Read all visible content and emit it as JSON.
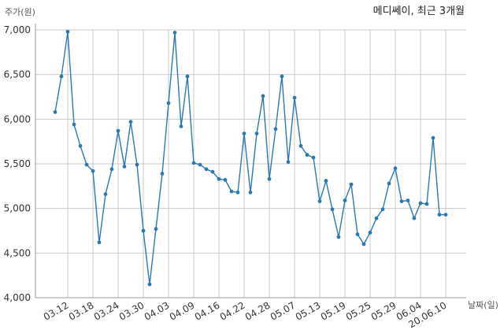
{
  "chart_data": {
    "type": "line",
    "title": "메디쎄이, 최근 3개월",
    "ylabel": "주가(원)",
    "xlabel": "날짜(일)",
    "ylim": [
      4000,
      7000
    ],
    "yticks": [
      4000,
      4500,
      5000,
      5500,
      6000,
      6500,
      7000
    ],
    "ytick_labels": [
      "4,000",
      "4,500",
      "5,000",
      "5,500",
      "6,000",
      "6,500",
      "7,000"
    ],
    "xtick_labels": [
      "03.12",
      "03.18",
      "03.24",
      "03.30",
      "04.03",
      "04.09",
      "04.16",
      "04.22",
      "04.28",
      "05.07",
      "05.13",
      "05.19",
      "05.25",
      "05.29",
      "06.04",
      "20.06.10"
    ],
    "xtick_indices": [
      2,
      6,
      10,
      14,
      18,
      22,
      26,
      30,
      34,
      38,
      42,
      46,
      50,
      54,
      58,
      62
    ],
    "grid": true,
    "color": "#2a7ab0",
    "values": [
      6080,
      6480,
      6980,
      5940,
      5700,
      5490,
      5420,
      4620,
      5160,
      5440,
      5870,
      5470,
      5970,
      5490,
      4750,
      4150,
      4770,
      5390,
      6180,
      6970,
      5920,
      6480,
      5510,
      5490,
      5440,
      5410,
      5330,
      5320,
      5190,
      5180,
      5840,
      5180,
      5840,
      6260,
      5330,
      5890,
      6480,
      5520,
      6240,
      5700,
      5600,
      5570,
      5080,
      5310,
      4990,
      4680,
      5090,
      5270,
      4710,
      4600,
      4730,
      4890,
      4990,
      5280,
      5450,
      5080,
      5090,
      4890,
      5060,
      5050,
      5790,
      4930,
      4930
    ]
  }
}
